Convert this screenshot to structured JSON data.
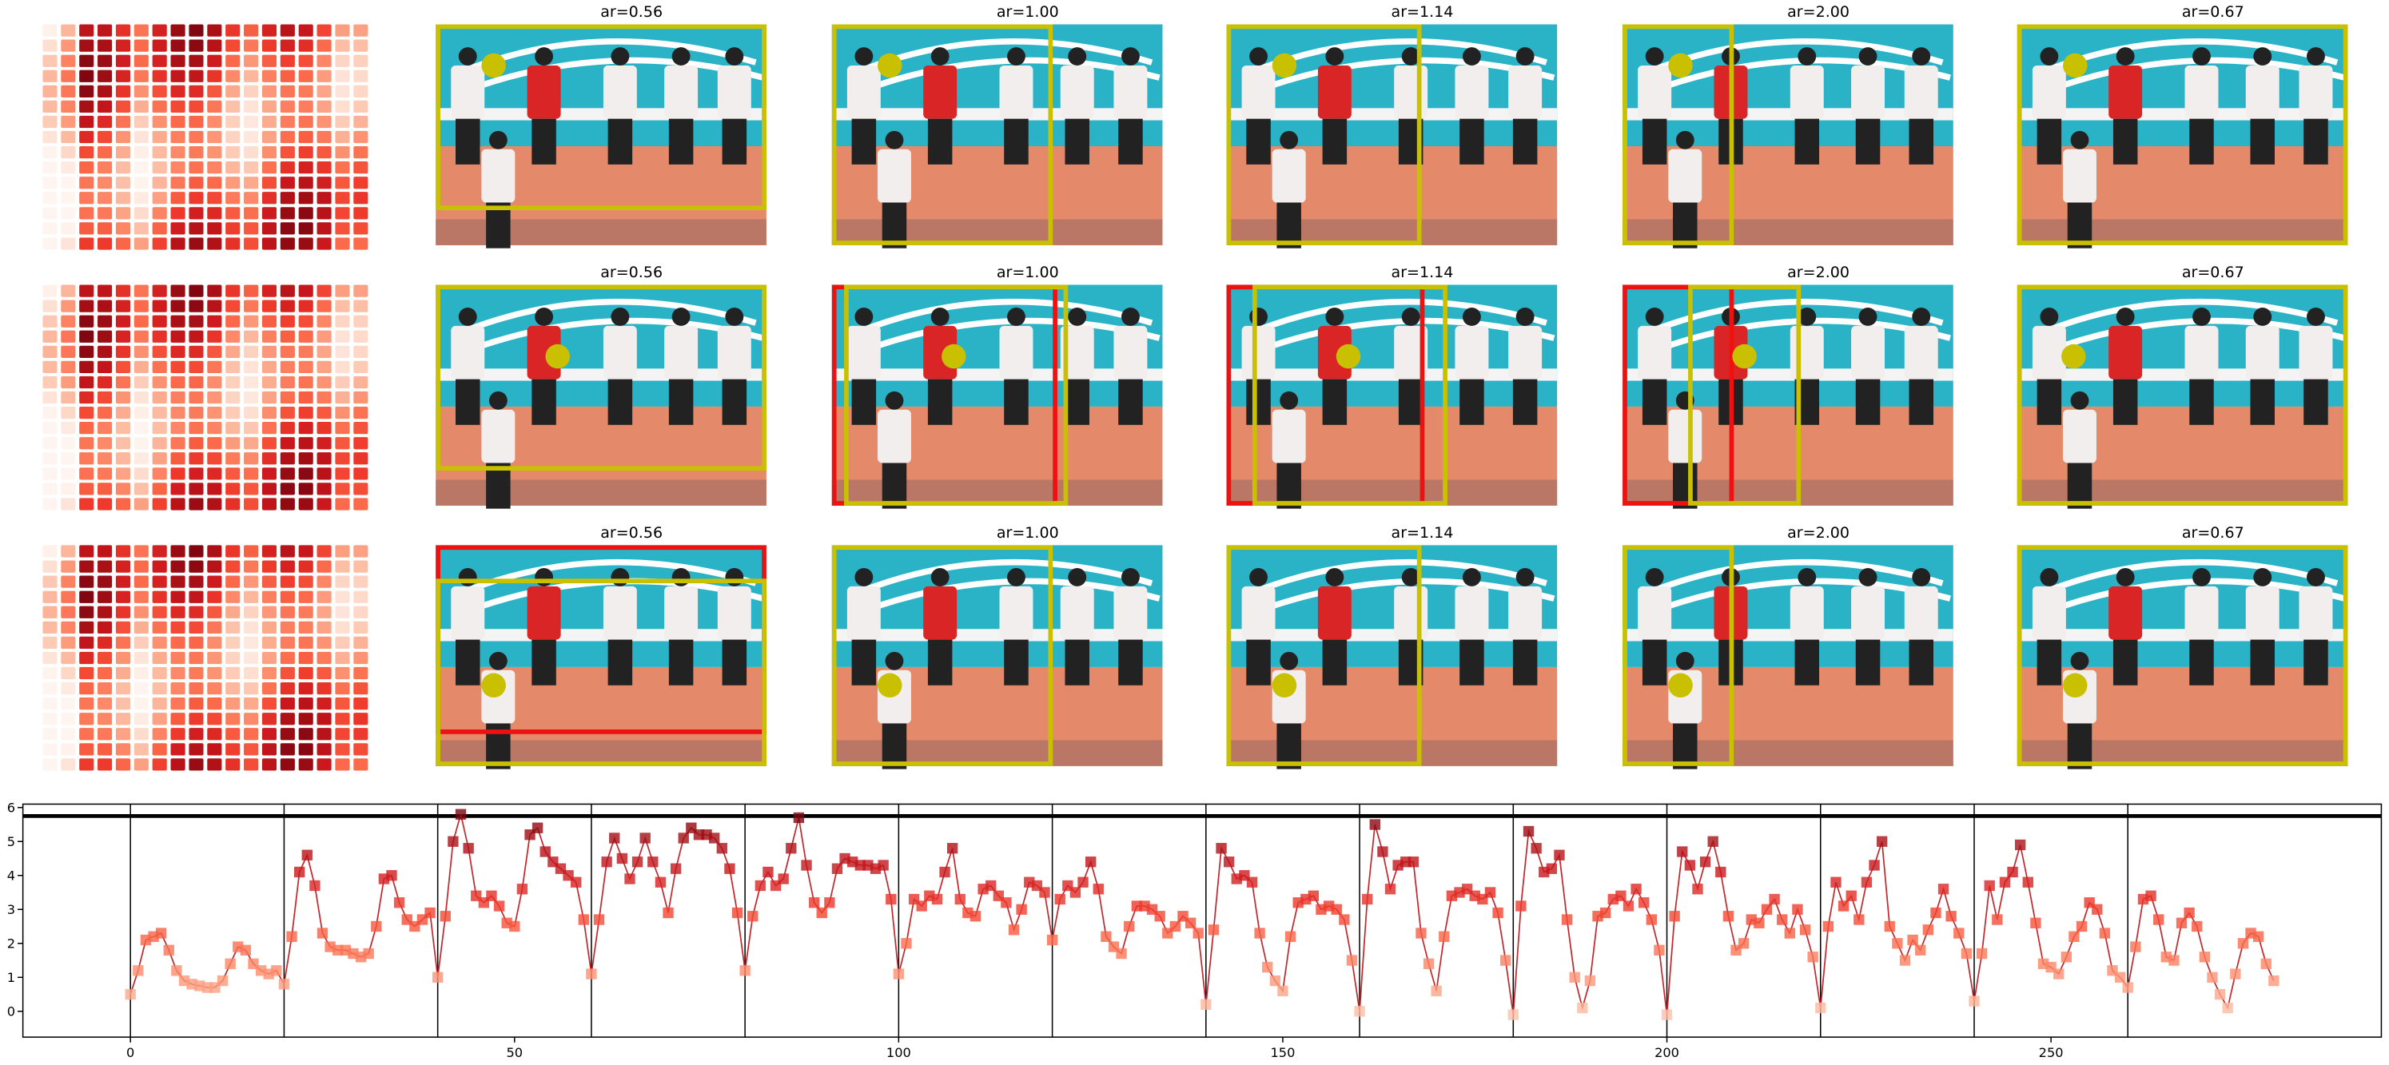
{
  "rows": [
    {
      "titles": [
        "ar=0.56",
        "ar=1.00",
        "ar=1.14",
        "ar=2.00",
        "ar=0.67"
      ]
    },
    {
      "titles": [
        "ar=0.56",
        "ar=1.00",
        "ar=1.14",
        "ar=2.00",
        "ar=0.67"
      ]
    },
    {
      "titles": [
        "ar=0.56",
        "ar=1.00",
        "ar=1.14",
        "ar=2.00",
        "ar=0.67"
      ]
    }
  ],
  "chart_data": {
    "type": "line",
    "x": [
      0,
      1,
      2,
      3,
      4,
      5,
      6,
      7,
      8,
      9,
      10,
      11,
      12,
      13,
      14,
      15,
      16,
      17,
      18,
      19,
      20,
      21,
      22,
      23,
      24,
      25,
      26,
      27,
      28,
      29,
      30,
      31,
      32,
      33,
      34,
      35,
      36,
      37,
      38,
      39,
      40,
      41,
      42,
      43,
      44,
      45,
      46,
      47,
      48,
      49,
      50,
      51,
      52,
      53,
      54,
      55,
      56,
      57,
      58,
      59,
      60,
      61,
      62,
      63,
      64,
      65,
      66,
      67,
      68,
      69,
      70,
      71,
      72,
      73,
      74,
      75,
      76,
      77,
      78,
      79,
      80,
      81,
      82,
      83,
      84,
      85,
      86,
      87,
      88,
      89,
      90,
      91,
      92,
      93,
      94,
      95,
      96,
      97,
      98,
      99,
      100,
      101,
      102,
      103,
      104,
      105,
      106,
      107,
      108,
      109,
      110,
      111,
      112,
      113,
      114,
      115,
      116,
      117,
      118,
      119,
      120,
      121,
      122,
      123,
      124,
      125,
      126,
      127,
      128,
      129,
      130,
      131,
      132,
      133,
      134,
      135,
      136,
      137,
      138,
      139,
      140,
      141,
      142,
      143,
      144,
      145,
      146,
      147,
      148,
      149,
      150,
      151,
      152,
      153,
      154,
      155,
      156,
      157,
      158,
      159,
      160,
      161,
      162,
      163,
      164,
      165,
      166,
      167,
      168,
      169,
      170,
      171,
      172,
      173,
      174,
      175,
      176,
      177,
      178,
      179,
      180,
      181,
      182,
      183,
      184,
      185,
      186,
      187,
      188,
      189,
      190,
      191,
      192,
      193,
      194,
      195,
      196,
      197,
      198,
      199,
      200,
      201,
      202,
      203,
      204,
      205,
      206,
      207,
      208,
      209,
      210,
      211,
      212,
      213,
      214,
      215,
      216,
      217,
      218,
      219,
      220,
      221,
      222,
      223,
      224,
      225,
      226,
      227,
      228,
      229,
      230,
      231,
      232,
      233,
      234,
      235,
      236,
      237,
      238,
      239,
      240,
      241,
      242,
      243,
      244,
      245,
      246,
      247,
      248,
      249,
      250,
      251,
      252,
      253,
      254,
      255,
      256,
      257,
      258,
      259,
      260,
      261,
      262,
      263,
      264,
      265,
      266,
      267,
      268,
      269,
      270,
      271,
      272,
      273,
      274,
      275,
      276,
      277,
      278,
      279
    ],
    "values": [
      0.5,
      1.2,
      2.1,
      2.2,
      2.3,
      1.8,
      1.2,
      0.9,
      0.8,
      0.75,
      0.7,
      0.7,
      0.9,
      1.4,
      1.9,
      1.8,
      1.4,
      1.2,
      1.1,
      1.2,
      0.8,
      2.2,
      4.1,
      4.6,
      3.7,
      2.3,
      1.9,
      1.8,
      1.8,
      1.7,
      1.6,
      1.7,
      2.5,
      3.9,
      4.0,
      3.2,
      2.7,
      2.5,
      2.7,
      2.9,
      1.0,
      2.8,
      5.0,
      5.8,
      4.8,
      3.4,
      3.2,
      3.4,
      3.1,
      2.6,
      2.5,
      3.6,
      5.2,
      5.4,
      4.7,
      4.4,
      4.2,
      4.0,
      3.8,
      2.7,
      1.1,
      2.7,
      4.4,
      5.1,
      4.5,
      3.9,
      4.4,
      5.1,
      4.4,
      3.8,
      2.9,
      4.2,
      5.1,
      5.4,
      5.2,
      5.2,
      5.1,
      4.8,
      4.2,
      2.9,
      1.2,
      2.8,
      3.7,
      4.1,
      3.7,
      3.9,
      4.8,
      5.7,
      4.3,
      3.2,
      2.9,
      3.2,
      4.2,
      4.5,
      4.4,
      4.3,
      4.3,
      4.2,
      4.3,
      3.3,
      1.1,
      2.0,
      3.3,
      3.1,
      3.4,
      3.3,
      4.1,
      4.8,
      3.3,
      2.9,
      2.8,
      3.6,
      3.7,
      3.4,
      3.2,
      2.4,
      3.0,
      3.8,
      3.7,
      3.5,
      2.1,
      3.3,
      3.7,
      3.5,
      3.8,
      4.4,
      3.6,
      2.2,
      1.9,
      1.7,
      2.5,
      3.1,
      3.1,
      3.0,
      2.8,
      2.3,
      2.5,
      2.8,
      2.6,
      2.3,
      0.2,
      2.4,
      4.8,
      4.4,
      3.9,
      4.0,
      3.8,
      2.3,
      1.3,
      0.9,
      0.6,
      2.2,
      3.2,
      3.3,
      3.4,
      3.0,
      3.1,
      3.0,
      2.7,
      1.5,
      0.0,
      3.3,
      5.5,
      4.7,
      3.6,
      4.3,
      4.4,
      4.4,
      2.3,
      1.4,
      0.6,
      2.2,
      3.4,
      3.5,
      3.6,
      3.4,
      3.3,
      3.5,
      2.9,
      1.5,
      -0.1,
      3.1,
      5.3,
      4.8,
      4.1,
      4.2,
      4.6,
      2.7,
      1.0,
      0.1,
      0.9,
      2.8,
      2.9,
      3.3,
      3.4,
      3.1,
      3.6,
      3.2,
      2.7,
      1.8,
      -0.1,
      2.8,
      4.7,
      4.3,
      3.6,
      4.4,
      5.0,
      4.1,
      2.8,
      1.8,
      2.0,
      2.7,
      2.6,
      3.0,
      3.3,
      2.7,
      2.3,
      3.0,
      2.4,
      1.6,
      0.1,
      2.5,
      3.8,
      3.1,
      3.4,
      2.7,
      3.8,
      4.3,
      5.0,
      2.5,
      2.0,
      1.5,
      2.1,
      1.8,
      2.4,
      2.9,
      3.6,
      2.8,
      2.3,
      1.7,
      0.3,
      1.7,
      3.7,
      2.7,
      3.8,
      4.1,
      4.9,
      3.8,
      2.6,
      1.4,
      1.3,
      1.1,
      1.6,
      2.2,
      2.5,
      3.2,
      3.0,
      2.3,
      1.2,
      1.0,
      0.7,
      1.9,
      3.3,
      3.4,
      2.7,
      1.6,
      1.5,
      2.6,
      2.9,
      2.5,
      1.6,
      1.0,
      0.5,
      0.1,
      1.1,
      2.0,
      2.3,
      2.2,
      1.4,
      0.9
    ],
    "color": "#c0282d",
    "cmap": "Reds",
    "marker": "square",
    "xlim": [
      -14,
      293
    ],
    "ylim": [
      -0.76,
      6.1
    ],
    "xticks": [
      0,
      50,
      100,
      150,
      200,
      250
    ],
    "yticks": [
      0,
      1,
      2,
      3,
      4,
      5,
      6
    ],
    "vlines": [
      0,
      20,
      40,
      60,
      80,
      100,
      120,
      140,
      160,
      180,
      200,
      220,
      240,
      260
    ],
    "hline": 5.75
  }
}
